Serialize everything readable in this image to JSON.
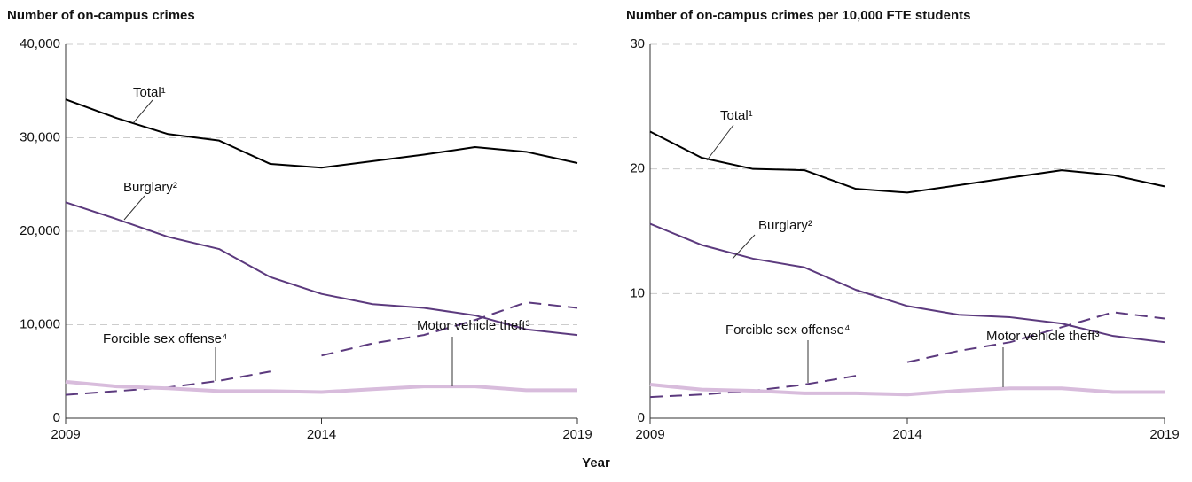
{
  "x_label": "Year",
  "chart_data": [
    {
      "type": "line",
      "title": "Number of on-campus crimes",
      "x": [
        2009,
        2010,
        2011,
        2012,
        2013,
        2014,
        2015,
        2016,
        2017,
        2018,
        2019
      ],
      "xlim": [
        2009,
        2019
      ],
      "xticks": [
        2009,
        2014,
        2019
      ],
      "ylim": [
        0,
        40000
      ],
      "yticks": [
        0,
        {
          "value": 10000,
          "label": "10,000"
        },
        {
          "value": 20000,
          "label": "20,000"
        },
        {
          "value": 30000,
          "label": "30,000"
        },
        {
          "value": 40000,
          "label": "40,000"
        }
      ],
      "grid": true,
      "series": [
        {
          "name": "Total¹",
          "color": "#000000",
          "style": "solid",
          "values": [
            34100,
            32100,
            30400,
            29700,
            27200,
            26800,
            27500,
            28200,
            29000,
            28500,
            27300
          ]
        },
        {
          "name": "Burglary²",
          "color": "#5c3a7e",
          "style": "solid",
          "values": [
            23100,
            21300,
            19400,
            18100,
            15100,
            13300,
            12200,
            11800,
            11000,
            9500,
            8900
          ]
        },
        {
          "name": "Forcible sex offense⁴",
          "color": "#5c3a7e",
          "style": "dashed",
          "break_after_x": 2013,
          "values": [
            2500,
            2900,
            3300,
            4000,
            5000,
            6700,
            8000,
            8900,
            10500,
            12400,
            11800
          ]
        },
        {
          "name": "Motor vehicle theft³",
          "color": "#d8bcdc",
          "style": "thick",
          "values": [
            3900,
            3400,
            3200,
            2900,
            2900,
            2800,
            3100,
            3400,
            3400,
            3000,
            3000
          ]
        }
      ]
    },
    {
      "type": "line",
      "title": "Number of on-campus crimes per 10,000 FTE students",
      "x": [
        2009,
        2010,
        2011,
        2012,
        2013,
        2014,
        2015,
        2016,
        2017,
        2018,
        2019
      ],
      "xlim": [
        2009,
        2019
      ],
      "xticks": [
        2009,
        2014,
        2019
      ],
      "ylim": [
        0,
        30
      ],
      "yticks": [
        0,
        10,
        20,
        30
      ],
      "grid": true,
      "series": [
        {
          "name": "Total¹",
          "color": "#000000",
          "style": "solid",
          "values": [
            23.0,
            20.9,
            20.0,
            19.9,
            18.4,
            18.1,
            18.7,
            19.3,
            19.9,
            19.5,
            18.6
          ]
        },
        {
          "name": "Burglary²",
          "color": "#5c3a7e",
          "style": "solid",
          "values": [
            15.6,
            13.9,
            12.8,
            12.1,
            10.3,
            9.0,
            8.3,
            8.1,
            7.6,
            6.6,
            6.1
          ]
        },
        {
          "name": "Forcible sex offense⁴",
          "color": "#5c3a7e",
          "style": "dashed",
          "break_after_x": 2013,
          "values": [
            1.7,
            1.9,
            2.2,
            2.7,
            3.4,
            4.5,
            5.4,
            6.1,
            7.3,
            8.5,
            8.0
          ]
        },
        {
          "name": "Motor vehicle theft³",
          "color": "#d8bcdc",
          "style": "thick",
          "values": [
            2.7,
            2.3,
            2.2,
            2.0,
            2.0,
            1.9,
            2.2,
            2.4,
            2.4,
            2.1,
            2.1
          ]
        }
      ]
    }
  ]
}
